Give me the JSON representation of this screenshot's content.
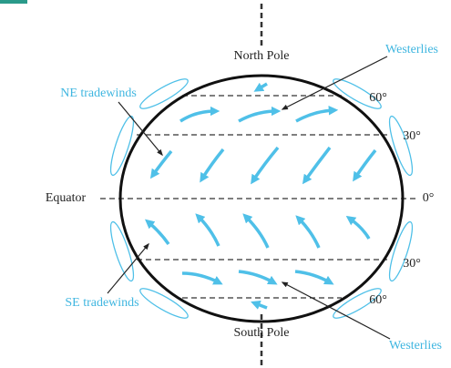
{
  "labels": {
    "north_pole": "North Pole",
    "south_pole": "South Pole",
    "equator": "Equator",
    "ne_tradewinds": "NE tradewinds",
    "se_tradewinds": "SE tradewinds",
    "westerlies_north": "Westerlies",
    "westerlies_south": "Westerlies"
  },
  "latitudes": {
    "north_60": "60°",
    "north_30": "30°",
    "equator": "0°",
    "south_30": "30°",
    "south_60": "60°"
  }
}
